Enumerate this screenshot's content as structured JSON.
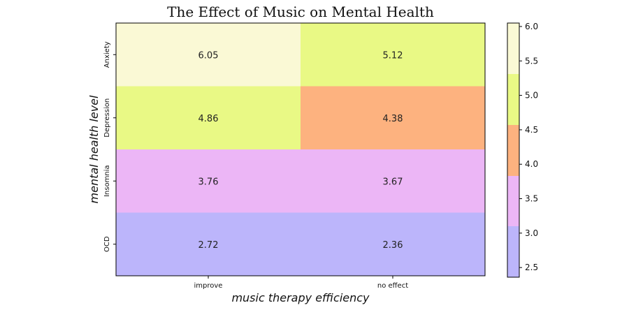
{
  "chart_data": {
    "type": "heatmap",
    "title": "The Effect of Music on Mental Health",
    "xlabel": "music therapy efficiency",
    "ylabel": "mental health level",
    "x_categories": [
      "improve",
      "no effect"
    ],
    "y_categories": [
      "Anxiety",
      "Depression",
      "Insomnia",
      "OCD"
    ],
    "values": [
      [
        6.05,
        5.12
      ],
      [
        4.86,
        4.38
      ],
      [
        3.76,
        3.67
      ],
      [
        2.72,
        2.36
      ]
    ],
    "value_labels": [
      [
        "6.05",
        "5.12"
      ],
      [
        "4.86",
        "4.38"
      ],
      [
        "3.76",
        "3.67"
      ],
      [
        "2.72",
        "2.36"
      ]
    ],
    "colorbar": {
      "range": [
        2.36,
        6.05
      ],
      "ticks": [
        "2.5",
        "3.0",
        "3.5",
        "4.0",
        "4.5",
        "5.0",
        "5.5",
        "6.0"
      ],
      "bins": [
        {
          "from": 2.36,
          "to": 3.1,
          "color": "#bcb5fb"
        },
        {
          "from": 3.1,
          "to": 3.83,
          "color": "#ecb6f6"
        },
        {
          "from": 3.83,
          "to": 4.57,
          "color": "#fdb27f"
        },
        {
          "from": 4.57,
          "to": 5.31,
          "color": "#e9f985"
        },
        {
          "from": 5.31,
          "to": 6.05,
          "color": "#faf9d5"
        }
      ]
    },
    "grid": false,
    "legend": "colorbar right"
  }
}
